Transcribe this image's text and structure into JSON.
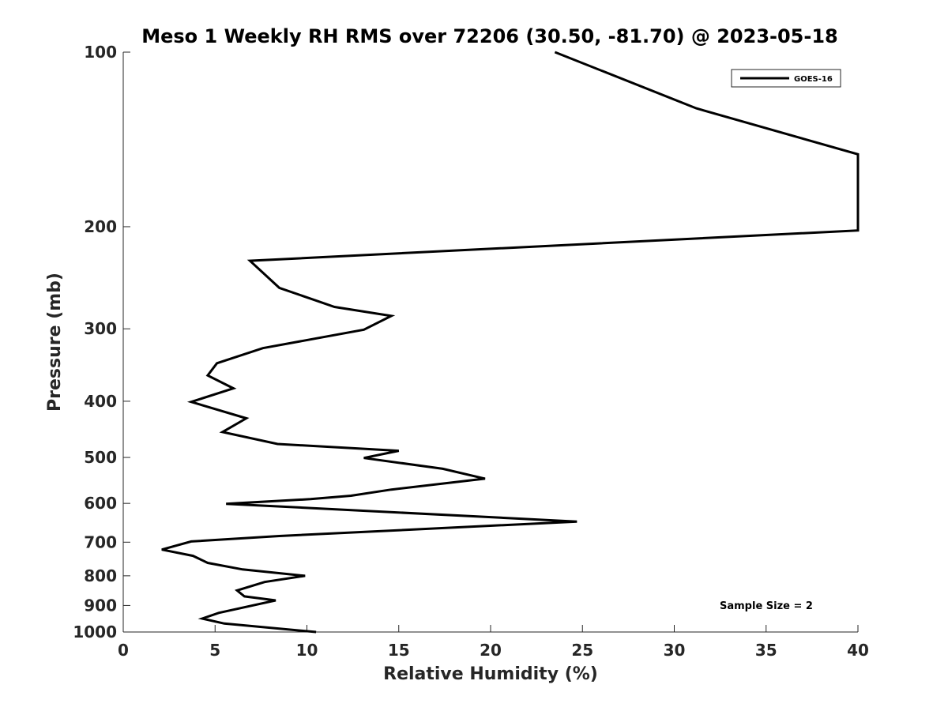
{
  "chart_data": {
    "type": "line",
    "title": "Meso 1 Weekly RH RMS over 72206 (30.50, -81.70) @ 2023-05-18",
    "xlabel": "Relative Humidity (%)",
    "ylabel": "Pressure (mb)",
    "xlim": [
      0,
      40
    ],
    "ylim": [
      100,
      1000
    ],
    "y_scale": "log",
    "y_direction": "reversed",
    "grid": false,
    "legend_position": "top-right",
    "x_ticks": [
      "0",
      "5",
      "10",
      "15",
      "20",
      "25",
      "30",
      "35",
      "40"
    ],
    "y_ticks": [
      "100",
      "200",
      "300",
      "400",
      "500",
      "600",
      "700",
      "800",
      "900",
      "1000"
    ],
    "annotation": "Sample Size = 2",
    "line_color": "#000000",
    "series": [
      {
        "name": "GOES-16",
        "points": [
          [
            23.5,
            100
          ],
          [
            31.2,
            125
          ],
          [
            40.0,
            150
          ],
          [
            40.0,
            203
          ],
          [
            6.9,
            229
          ],
          [
            8.5,
            255
          ],
          [
            11.5,
            275
          ],
          [
            14.6,
            285
          ],
          [
            13.1,
            301
          ],
          [
            7.6,
            324
          ],
          [
            5.1,
            344
          ],
          [
            4.6,
            361
          ],
          [
            6.0,
            380
          ],
          [
            3.7,
            401
          ],
          [
            6.7,
            428
          ],
          [
            5.4,
            452
          ],
          [
            8.4,
            474
          ],
          [
            15.0,
            487
          ],
          [
            13.1,
            501
          ],
          [
            17.4,
            523
          ],
          [
            19.7,
            544
          ],
          [
            14.6,
            568
          ],
          [
            12.4,
            582
          ],
          [
            10.2,
            590
          ],
          [
            5.6,
            601
          ],
          [
            24.7,
            645
          ],
          [
            8.5,
            683
          ],
          [
            3.7,
            698
          ],
          [
            2.1,
            721
          ],
          [
            3.8,
            739
          ],
          [
            4.6,
            760
          ],
          [
            6.5,
            780
          ],
          [
            9.9,
            800
          ],
          [
            7.7,
            820
          ],
          [
            6.2,
            848
          ],
          [
            6.6,
            868
          ],
          [
            8.3,
            882
          ],
          [
            5.2,
            927
          ],
          [
            4.3,
            948
          ],
          [
            5.5,
            967
          ],
          [
            10.5,
            1000
          ]
        ]
      }
    ]
  }
}
